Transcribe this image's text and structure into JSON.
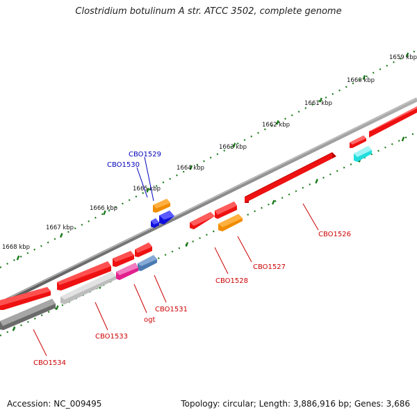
{
  "title": "Clostridium botulinum A str. ATCC 3502, complete genome",
  "footer": {
    "accession": "Accession: NC_009495",
    "summary": "Topology: circular; Length: 3,886,916 bp; Genes: 3,686"
  },
  "ruler_labels": [
    "1659 kbp",
    "1660 kbp",
    "1661 kbp",
    "1662 kbp",
    "1663 kbp",
    "1664 kbp",
    "1665 kbp",
    "1666 kbp",
    "1667 kbp",
    "1668 kbp"
  ],
  "gene_labels": {
    "cbo1526": "CBO1526",
    "cbo1527": "CBO1527",
    "cbo1528": "CBO1528",
    "cbo1529": "CBO1529",
    "cbo1530": "CBO1530",
    "cbo1531": "CBO1531",
    "ogt": "ogt",
    "cbo1533": "CBO1533",
    "cbo1534": "CBO1534"
  },
  "colors": {
    "backbone": "#888888",
    "ruler_ticks": "#1a7a1a",
    "gene_red": "#ee1111",
    "gene_orange": "#f08c00",
    "gene_blue": "#1111dd",
    "gene_magenta": "#e0208c",
    "gene_steelblue": "#4a7ab0",
    "gene_cyan": "#22dddd",
    "gene_gray": "#808080",
    "gene_lightgray": "#c0c0c0",
    "label_red": "#cc0000",
    "label_blue": "#0000bb"
  }
}
